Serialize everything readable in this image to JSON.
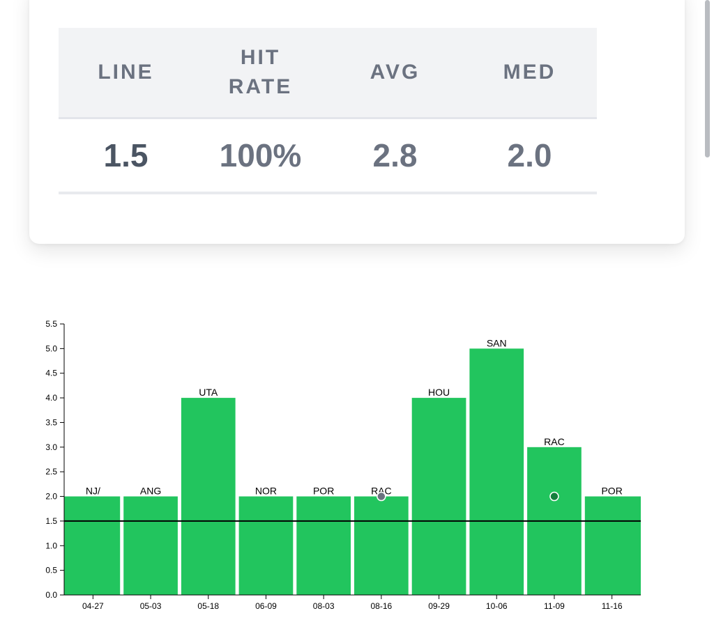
{
  "stats": {
    "headers": [
      "LINE",
      "HIT RATE",
      "AVG",
      "MED"
    ],
    "values": [
      "1.5",
      "100%",
      "2.8",
      "2.0"
    ]
  },
  "colors": {
    "bar": "#22c55e",
    "line": "#000000",
    "dot_gray": "#6b7280",
    "dot_green": "#15803d",
    "header_text": "#6b7280"
  },
  "chart_data": {
    "type": "bar",
    "categories": [
      "04-27",
      "05-03",
      "05-18",
      "06-09",
      "08-03",
      "08-16",
      "09-29",
      "10-06",
      "11-09",
      "11-16"
    ],
    "values": [
      2,
      2,
      4,
      2,
      2,
      2,
      4,
      5,
      3,
      2
    ],
    "bar_labels": [
      "NJ/",
      "ANG",
      "UTA",
      "NOR",
      "POR",
      "RAC",
      "HOU",
      "SAN",
      "RAC",
      "POR"
    ],
    "yticks": [
      "0.0",
      "0.5",
      "1.0",
      "1.5",
      "2.0",
      "2.5",
      "3.0",
      "3.5",
      "4.0",
      "4.5",
      "5.0",
      "5.5"
    ],
    "ylim": [
      0,
      5.5
    ],
    "line_value": 1.5,
    "markers": [
      {
        "category": "08-16",
        "value": 2.0,
        "color": "gray"
      },
      {
        "category": "11-09",
        "value": 2.0,
        "color": "green"
      }
    ],
    "title": "",
    "xlabel": "",
    "ylabel": ""
  }
}
